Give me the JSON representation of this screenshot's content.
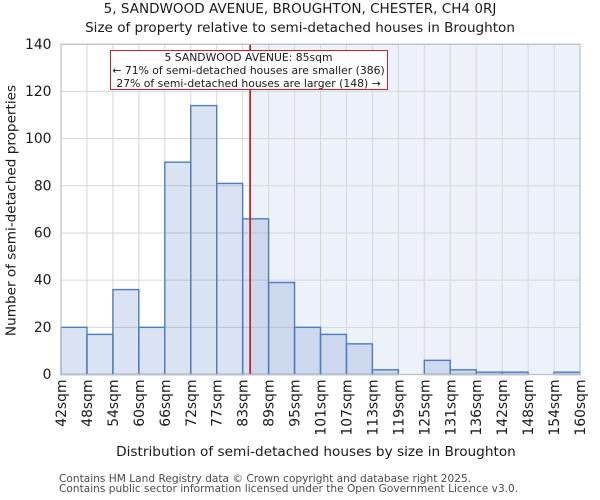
{
  "title_line1": "5, SANDWOOD AVENUE, BROUGHTON, CHESTER, CH4 0RJ",
  "title_line2": "Size of property relative to semi-detached houses in Broughton",
  "annotation": {
    "line1": "5 SANDWOOD AVENUE: 85sqm",
    "line2": "← 71% of semi-detached houses are smaller (386)",
    "line3": "27% of semi-detached houses are larger (148) →"
  },
  "footer": {
    "line1": "Contains HM Land Registry data © Crown copyright and database right 2025.",
    "line2": "Contains public sector information licensed under the Open Government Licence v3.0."
  },
  "chart_data": {
    "type": "bar",
    "title": "5, SANDWOOD AVENUE, BROUGHTON, CHESTER, CH4 0RJ",
    "subtitle": "Size of property relative to semi-detached houses in Broughton",
    "xlabel": "Distribution of semi-detached houses by size in Broughton",
    "ylabel": "Number of semi-detached properties",
    "bin_edges": [
      42,
      48,
      54,
      60,
      66,
      72,
      77,
      83,
      89,
      95,
      101,
      107,
      113,
      119,
      125,
      131,
      136,
      142,
      148,
      154,
      160
    ],
    "x_tick_labels": [
      "42sqm",
      "48sqm",
      "54sqm",
      "60sqm",
      "66sqm",
      "72sqm",
      "77sqm",
      "83sqm",
      "89sqm",
      "95sqm",
      "101sqm",
      "107sqm",
      "113sqm",
      "119sqm",
      "125sqm",
      "131sqm",
      "136sqm",
      "142sqm",
      "148sqm",
      "154sqm",
      "160sqm"
    ],
    "values": [
      20,
      17,
      36,
      20,
      90,
      114,
      81,
      66,
      39,
      20,
      17,
      13,
      2,
      0,
      6,
      2,
      1,
      1,
      0,
      1
    ],
    "ylim": [
      0,
      140
    ],
    "yticks": [
      0,
      20,
      40,
      60,
      80,
      100,
      120,
      140
    ],
    "grid": true,
    "legend": null,
    "marker_value": 85,
    "marker_label": "5 SANDWOOD AVENUE: 85sqm",
    "colors": {
      "bar_edge": "#4d7dbf",
      "bar_fill_alpha": 0.21,
      "shade_fill": "#edf2fa",
      "marker_line": "#cc2222",
      "annotation_border": "#cc2222",
      "grid_line": "#d6d6d6",
      "spine": "#bdbdbd",
      "text": "#1a1a1a",
      "footer_text": "#4a4a4a"
    }
  }
}
